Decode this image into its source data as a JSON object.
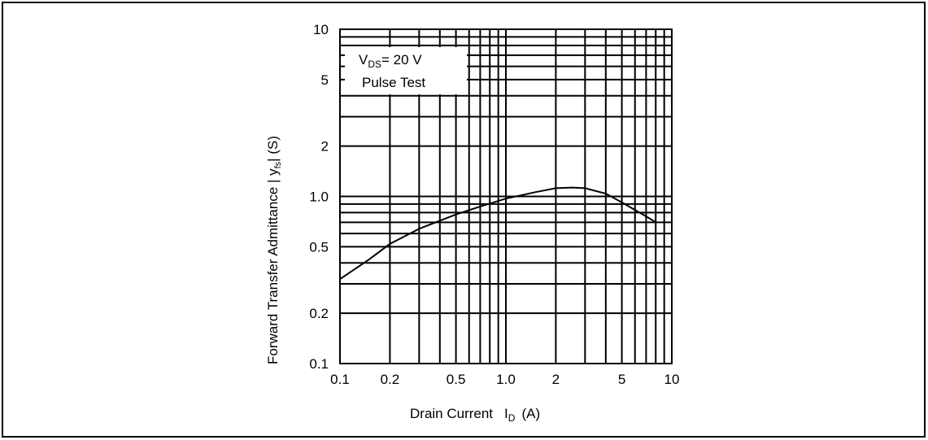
{
  "chart_data": {
    "type": "line",
    "xscale": "log",
    "yscale": "log",
    "xlim": [
      0.1,
      10
    ],
    "ylim": [
      0.1,
      10
    ],
    "grid": true,
    "x_ticks": [
      0.1,
      0.2,
      0.5,
      1.0,
      2,
      5,
      10
    ],
    "x_tick_labels": [
      "0.1",
      "0.2",
      "0.5",
      "1.0",
      "2",
      "5",
      "10"
    ],
    "y_ticks": [
      10,
      5,
      2,
      1.0,
      0.5,
      0.2,
      0.1
    ],
    "y_tick_labels": [
      "10",
      "5",
      "2",
      "1.0",
      "0.5",
      "0.2",
      "0.1"
    ],
    "xlabel": {
      "text": "Drain Current",
      "symbol": "I",
      "subscript": "D",
      "unit": "(A)"
    },
    "ylabel": "Forward Transfer Admittance  | y",
    "ylabel_sub": "fs",
    "ylabel_end": "| (S)",
    "annotation": {
      "line1_prefix": "V",
      "line1_sub": "DS",
      "line1_suffix": "= 20 V",
      "line2": "Pulse Test"
    },
    "series": [
      {
        "x": [
          0.1,
          0.15,
          0.2,
          0.3,
          0.5,
          0.7,
          1.0,
          1.5,
          2.0,
          2.5,
          3.0,
          4.0,
          5.0,
          6.0,
          7.0,
          8.0
        ],
        "y": [
          0.32,
          0.42,
          0.52,
          0.64,
          0.78,
          0.87,
          0.97,
          1.06,
          1.12,
          1.13,
          1.12,
          1.04,
          0.92,
          0.83,
          0.76,
          0.7
        ]
      }
    ]
  }
}
